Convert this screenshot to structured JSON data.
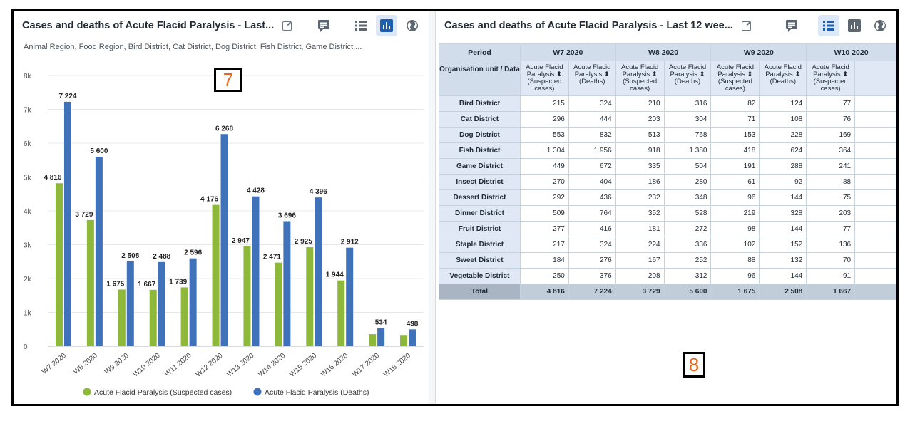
{
  "left_panel": {
    "title": "Cases and deaths of Acute Flacid Paralysis - Last...",
    "subtitle": "Animal Region, Food Region, Bird District, Cat District, Dog District, Fish District, Game District,...",
    "annotation": "7"
  },
  "right_panel": {
    "title": "Cases and deaths of Acute Flacid Paralysis - Last 12 wee...",
    "annotation": "8",
    "table": {
      "period_label": "Period",
      "ou_label": "Organisation unit / Data",
      "periods": [
        "W7 2020",
        "W8 2020",
        "W9 2020",
        "W10 2020"
      ],
      "col_suspected": "Acute Flacid Paralysis ⬍ (Suspected cases)",
      "col_deaths": "Acute Flacid Paralysis ⬍ (Deaths)",
      "rows": [
        {
          "name": "Bird District",
          "values": [
            "215",
            "324",
            "210",
            "316",
            "82",
            "124",
            "77"
          ]
        },
        {
          "name": "Cat District",
          "values": [
            "296",
            "444",
            "203",
            "304",
            "71",
            "108",
            "76"
          ]
        },
        {
          "name": "Dog District",
          "values": [
            "553",
            "832",
            "513",
            "768",
            "153",
            "228",
            "169"
          ]
        },
        {
          "name": "Fish District",
          "values": [
            "1 304",
            "1 956",
            "918",
            "1 380",
            "418",
            "624",
            "364"
          ]
        },
        {
          "name": "Game District",
          "values": [
            "449",
            "672",
            "335",
            "504",
            "191",
            "288",
            "241"
          ]
        },
        {
          "name": "Insect District",
          "values": [
            "270",
            "404",
            "186",
            "280",
            "61",
            "92",
            "88"
          ]
        },
        {
          "name": "Dessert District",
          "values": [
            "292",
            "436",
            "232",
            "348",
            "96",
            "144",
            "75"
          ]
        },
        {
          "name": "Dinner District",
          "values": [
            "509",
            "764",
            "352",
            "528",
            "219",
            "328",
            "203"
          ]
        },
        {
          "name": "Fruit District",
          "values": [
            "277",
            "416",
            "181",
            "272",
            "98",
            "144",
            "77"
          ]
        },
        {
          "name": "Staple District",
          "values": [
            "217",
            "324",
            "224",
            "336",
            "102",
            "152",
            "136"
          ]
        },
        {
          "name": "Sweet District",
          "values": [
            "184",
            "276",
            "167",
            "252",
            "88",
            "132",
            "70"
          ]
        },
        {
          "name": "Vegetable District",
          "values": [
            "250",
            "376",
            "208",
            "312",
            "96",
            "144",
            "91"
          ]
        }
      ],
      "total": {
        "name": "Total",
        "values": [
          "4 816",
          "7 224",
          "3 729",
          "5 600",
          "1 675",
          "2 508",
          "1 667"
        ]
      }
    }
  },
  "colors": {
    "suspected": "#8db83a",
    "deaths": "#3f72b8",
    "annotation": "#e8651d"
  },
  "chart_data": {
    "type": "bar",
    "title": "Cases and deaths of Acute Flacid Paralysis - Last...",
    "categories": [
      "W7 2020",
      "W8 2020",
      "W9 2020",
      "W10 2020",
      "W11 2020",
      "W12 2020",
      "W13 2020",
      "W14 2020",
      "W15 2020",
      "W16 2020",
      "W17 2020",
      "W18 2020"
    ],
    "series": [
      {
        "name": "Acute Flacid Paralysis (Suspected cases)",
        "values": [
          4816,
          3729,
          1675,
          1667,
          1739,
          4176,
          2947,
          2471,
          2925,
          1944,
          356,
          332
        ],
        "labels": [
          "4 816",
          "3 729",
          "1 675",
          "1 667",
          "1 739",
          "4 176",
          "2 947",
          "2 471",
          "2 925",
          "1 944",
          "",
          ""
        ]
      },
      {
        "name": "Acute Flacid Paralysis (Deaths)",
        "values": [
          7224,
          5600,
          2508,
          2488,
          2596,
          6268,
          4428,
          3696,
          4396,
          2912,
          534,
          498
        ],
        "labels": [
          "7 224",
          "5 600",
          "2 508",
          "2 488",
          "2 596",
          "6 268",
          "4 428",
          "3 696",
          "4 396",
          "2 912",
          "534",
          "498"
        ]
      }
    ],
    "yticks": [
      "0",
      "1k",
      "2k",
      "3k",
      "4k",
      "5k",
      "6k",
      "7k",
      "8k"
    ],
    "ylim": [
      0,
      8000
    ],
    "legend": "bottom"
  }
}
